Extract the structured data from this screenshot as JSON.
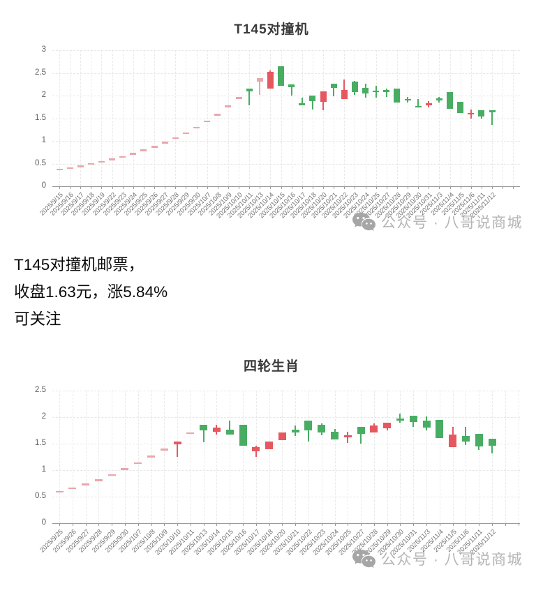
{
  "watermark": {
    "icon": "wechat-icon",
    "text": "公众号 · 八哥说商城"
  },
  "note": {
    "lines": [
      "T145对撞机邮票，",
      "收盘1.63元，涨5.84%",
      "可关注"
    ]
  },
  "colors": {
    "red": "#e65860",
    "green": "#48ad63",
    "pale_red": "#e9a6ab",
    "grid": "#e8e8e8",
    "axis": "#9a9a9a",
    "title": "#3a3a3a",
    "y_label": "#606060",
    "x_label": "#707070",
    "note_text": "#0a0a0a",
    "watermark_text": "#b5b5b5"
  },
  "chart_data": [
    {
      "type": "candlestick",
      "title": "T145对撞机",
      "ylim": [
        0,
        3
      ],
      "ystep": 0.5,
      "yticks": [
        "0",
        "0.5",
        "1",
        "1.5",
        "2",
        "2.5",
        "3"
      ],
      "grid": true,
      "legend_position": "none",
      "candles": [
        {
          "d": "2025/9/15",
          "h": 0.37,
          "l": 0.37,
          "bt": 0.37,
          "bb": 0.37,
          "c": "p"
        },
        {
          "d": "2025/9/16",
          "h": 0.4,
          "l": 0.4,
          "bt": 0.4,
          "bb": 0.4,
          "c": "p"
        },
        {
          "d": "2025/9/17",
          "h": 0.44,
          "l": 0.44,
          "bt": 0.44,
          "bb": 0.44,
          "c": "p"
        },
        {
          "d": "2025/9/18",
          "h": 0.49,
          "l": 0.49,
          "bt": 0.49,
          "bb": 0.49,
          "c": "p"
        },
        {
          "d": "2025/9/19",
          "h": 0.54,
          "l": 0.54,
          "bt": 0.54,
          "bb": 0.54,
          "c": "p"
        },
        {
          "d": "2025/9/22",
          "h": 0.59,
          "l": 0.59,
          "bt": 0.59,
          "bb": 0.59,
          "c": "p"
        },
        {
          "d": "2025/9/23",
          "h": 0.65,
          "l": 0.65,
          "bt": 0.65,
          "bb": 0.65,
          "c": "p"
        },
        {
          "d": "2025/9/24",
          "h": 0.72,
          "l": 0.72,
          "bt": 0.72,
          "bb": 0.72,
          "c": "p"
        },
        {
          "d": "2025/9/25",
          "h": 0.79,
          "l": 0.79,
          "bt": 0.79,
          "bb": 0.79,
          "c": "p"
        },
        {
          "d": "2025/9/26",
          "h": 0.87,
          "l": 0.87,
          "bt": 0.87,
          "bb": 0.87,
          "c": "p"
        },
        {
          "d": "2025/9/27",
          "h": 0.96,
          "l": 0.96,
          "bt": 0.96,
          "bb": 0.96,
          "c": "p"
        },
        {
          "d": "2025/9/28",
          "h": 1.06,
          "l": 1.06,
          "bt": 1.06,
          "bb": 1.06,
          "c": "p"
        },
        {
          "d": "2025/9/29",
          "h": 1.17,
          "l": 1.17,
          "bt": 1.17,
          "bb": 1.17,
          "c": "p"
        },
        {
          "d": "2025/9/30",
          "h": 1.29,
          "l": 1.29,
          "bt": 1.29,
          "bb": 1.29,
          "c": "p"
        },
        {
          "d": "2025/10/7",
          "h": 1.43,
          "l": 1.43,
          "bt": 1.43,
          "bb": 1.43,
          "c": "p"
        },
        {
          "d": "2025/10/8",
          "h": 1.58,
          "l": 1.58,
          "bt": 1.58,
          "bb": 1.58,
          "c": "p"
        },
        {
          "d": "2025/10/9",
          "h": 1.76,
          "l": 1.76,
          "bt": 1.76,
          "bb": 1.76,
          "c": "p"
        },
        {
          "d": "2025/10/10",
          "h": 1.95,
          "l": 1.95,
          "bt": 1.95,
          "bb": 1.95,
          "c": "p"
        },
        {
          "d": "2025/10/11",
          "h": 2.16,
          "l": 1.78,
          "bt": 2.16,
          "bb": 2.09,
          "c": "g"
        },
        {
          "d": "2025/10/13",
          "h": 2.38,
          "l": 2.02,
          "bt": 2.38,
          "bb": 2.31,
          "c": "p"
        },
        {
          "d": "2025/10/14",
          "h": 2.56,
          "l": 2.15,
          "bt": 2.52,
          "bb": 2.15,
          "c": "r"
        },
        {
          "d": "2025/10/15",
          "h": 2.65,
          "l": 2.22,
          "bt": 2.65,
          "bb": 2.22,
          "c": "g"
        },
        {
          "d": "2025/10/16",
          "h": 2.24,
          "l": 2.0,
          "bt": 2.24,
          "bb": 2.19,
          "c": "g"
        },
        {
          "d": "2025/10/17",
          "h": 1.95,
          "l": 1.8,
          "bt": 1.83,
          "bb": 1.8,
          "c": "g"
        },
        {
          "d": "2025/10/18",
          "h": 2.0,
          "l": 1.69,
          "bt": 2.0,
          "bb": 1.88,
          "c": "g"
        },
        {
          "d": "2025/10/20",
          "h": 2.09,
          "l": 1.68,
          "bt": 2.09,
          "bb": 1.86,
          "c": "r"
        },
        {
          "d": "2025/10/21",
          "h": 2.26,
          "l": 1.99,
          "bt": 2.26,
          "bb": 2.17,
          "c": "g"
        },
        {
          "d": "2025/10/22",
          "h": 2.35,
          "l": 1.92,
          "bt": 2.13,
          "bb": 1.92,
          "c": "r"
        },
        {
          "d": "2025/10/23",
          "h": 2.33,
          "l": 2.02,
          "bt": 2.31,
          "bb": 2.07,
          "c": "g"
        },
        {
          "d": "2025/10/24",
          "h": 2.26,
          "l": 1.96,
          "bt": 2.17,
          "bb": 2.04,
          "c": "g"
        },
        {
          "d": "2025/10/25",
          "h": 2.21,
          "l": 1.96,
          "bt": 2.11,
          "bb": 2.07,
          "c": "g"
        },
        {
          "d": "2025/10/27",
          "h": 2.15,
          "l": 1.97,
          "bt": 2.13,
          "bb": 2.08,
          "c": "g"
        },
        {
          "d": "2025/10/28",
          "h": 2.16,
          "l": 1.85,
          "bt": 2.16,
          "bb": 1.85,
          "c": "g"
        },
        {
          "d": "2025/10/29",
          "h": 1.97,
          "l": 1.85,
          "bt": 1.93,
          "bb": 1.89,
          "c": "g"
        },
        {
          "d": "2025/10/30",
          "h": 1.93,
          "l": 1.74,
          "bt": 1.77,
          "bb": 1.74,
          "c": "g"
        },
        {
          "d": "2025/10/31",
          "h": 1.87,
          "l": 1.74,
          "bt": 1.83,
          "bb": 1.79,
          "c": "r"
        },
        {
          "d": "2025/11/3",
          "h": 1.97,
          "l": 1.85,
          "bt": 1.94,
          "bb": 1.89,
          "c": "g"
        },
        {
          "d": "2025/11/4",
          "h": 2.07,
          "l": 1.7,
          "bt": 2.07,
          "bb": 1.7,
          "c": "g"
        },
        {
          "d": "2025/11/5",
          "h": 1.86,
          "l": 1.62,
          "bt": 1.86,
          "bb": 1.62,
          "c": "g"
        },
        {
          "d": "2025/11/6",
          "h": 1.7,
          "l": 1.5,
          "bt": 1.62,
          "bb": 1.58,
          "c": "r"
        },
        {
          "d": "2025/11/11",
          "h": 1.68,
          "l": 1.49,
          "bt": 1.67,
          "bb": 1.54,
          "c": "g"
        },
        {
          "d": "2025/11/12",
          "h": 1.67,
          "l": 1.36,
          "bt": 1.67,
          "bb": 1.63,
          "c": "g"
        }
      ]
    },
    {
      "type": "candlestick",
      "title": "四轮生肖",
      "ylim": [
        0,
        2.5
      ],
      "ystep": 0.5,
      "yticks": [
        "0",
        "0.5",
        "1",
        "1.5",
        "2",
        "2.5"
      ],
      "grid": true,
      "legend_position": "none",
      "candles": [
        {
          "d": "2025/9/25",
          "h": 0.59,
          "l": 0.59,
          "bt": 0.59,
          "bb": 0.59,
          "c": "p"
        },
        {
          "d": "2025/9/26",
          "h": 0.66,
          "l": 0.66,
          "bt": 0.66,
          "bb": 0.66,
          "c": "p"
        },
        {
          "d": "2025/9/27",
          "h": 0.73,
          "l": 0.73,
          "bt": 0.73,
          "bb": 0.73,
          "c": "p"
        },
        {
          "d": "2025/9/28",
          "h": 0.81,
          "l": 0.81,
          "bt": 0.81,
          "bb": 0.81,
          "c": "p"
        },
        {
          "d": "2025/9/29",
          "h": 0.91,
          "l": 0.91,
          "bt": 0.91,
          "bb": 0.91,
          "c": "p"
        },
        {
          "d": "2025/9/30",
          "h": 1.02,
          "l": 1.02,
          "bt": 1.02,
          "bb": 1.02,
          "c": "p"
        },
        {
          "d": "2025/10/7",
          "h": 1.13,
          "l": 1.13,
          "bt": 1.13,
          "bb": 1.13,
          "c": "p"
        },
        {
          "d": "2025/10/8",
          "h": 1.26,
          "l": 1.26,
          "bt": 1.26,
          "bb": 1.26,
          "c": "p"
        },
        {
          "d": "2025/10/9",
          "h": 1.39,
          "l": 1.39,
          "bt": 1.39,
          "bb": 1.39,
          "c": "p"
        },
        {
          "d": "2025/10/10",
          "h": 1.54,
          "l": 1.25,
          "bt": 1.54,
          "bb": 1.49,
          "c": "r"
        },
        {
          "d": "2025/10/11",
          "h": 1.7,
          "l": 1.7,
          "bt": 1.7,
          "bb": 1.7,
          "c": "p"
        },
        {
          "d": "2025/10/13",
          "h": 1.86,
          "l": 1.52,
          "bt": 1.86,
          "bb": 1.75,
          "c": "g"
        },
        {
          "d": "2025/10/14",
          "h": 1.86,
          "l": 1.67,
          "bt": 1.8,
          "bb": 1.73,
          "c": "r"
        },
        {
          "d": "2025/10/15",
          "h": 1.93,
          "l": 1.67,
          "bt": 1.76,
          "bb": 1.67,
          "c": "g"
        },
        {
          "d": "2025/10/16",
          "h": 1.85,
          "l": 1.46,
          "bt": 1.85,
          "bb": 1.46,
          "c": "g"
        },
        {
          "d": "2025/10/17",
          "h": 1.46,
          "l": 1.25,
          "bt": 1.43,
          "bb": 1.35,
          "c": "r"
        },
        {
          "d": "2025/10/18",
          "h": 1.54,
          "l": 1.4,
          "bt": 1.54,
          "bb": 1.4,
          "c": "r"
        },
        {
          "d": "2025/10/20",
          "h": 1.71,
          "l": 1.56,
          "bt": 1.71,
          "bb": 1.56,
          "c": "r"
        },
        {
          "d": "2025/10/21",
          "h": 1.84,
          "l": 1.64,
          "bt": 1.76,
          "bb": 1.71,
          "c": "g"
        },
        {
          "d": "2025/10/22",
          "h": 1.93,
          "l": 1.54,
          "bt": 1.93,
          "bb": 1.75,
          "c": "g"
        },
        {
          "d": "2025/10/23",
          "h": 1.88,
          "l": 1.66,
          "bt": 1.85,
          "bb": 1.71,
          "c": "g"
        },
        {
          "d": "2025/10/24",
          "h": 1.77,
          "l": 1.58,
          "bt": 1.72,
          "bb": 1.58,
          "c": "g"
        },
        {
          "d": "2025/10/25",
          "h": 1.73,
          "l": 1.51,
          "bt": 1.66,
          "bb": 1.62,
          "c": "r"
        },
        {
          "d": "2025/10/27",
          "h": 1.82,
          "l": 1.5,
          "bt": 1.82,
          "bb": 1.69,
          "c": "g"
        },
        {
          "d": "2025/10/28",
          "h": 1.88,
          "l": 1.71,
          "bt": 1.84,
          "bb": 1.71,
          "c": "r"
        },
        {
          "d": "2025/10/29",
          "h": 1.89,
          "l": 1.75,
          "bt": 1.89,
          "bb": 1.79,
          "c": "r"
        },
        {
          "d": "2025/10/30",
          "h": 2.06,
          "l": 1.9,
          "bt": 1.98,
          "bb": 1.93,
          "c": "g"
        },
        {
          "d": "2025/10/31",
          "h": 2.03,
          "l": 1.81,
          "bt": 2.03,
          "bb": 1.91,
          "c": "g"
        },
        {
          "d": "2025/11/3",
          "h": 2.01,
          "l": 1.75,
          "bt": 1.93,
          "bb": 1.8,
          "c": "g"
        },
        {
          "d": "2025/11/4",
          "h": 1.95,
          "l": 1.6,
          "bt": 1.95,
          "bb": 1.6,
          "c": "g"
        },
        {
          "d": "2025/11/5",
          "h": 1.81,
          "l": 1.43,
          "bt": 1.67,
          "bb": 1.43,
          "c": "r"
        },
        {
          "d": "2025/11/6",
          "h": 1.81,
          "l": 1.48,
          "bt": 1.64,
          "bb": 1.54,
          "c": "g"
        },
        {
          "d": "2025/11/11",
          "h": 1.69,
          "l": 1.38,
          "bt": 1.69,
          "bb": 1.45,
          "c": "g"
        },
        {
          "d": "2025/11/12",
          "h": 1.59,
          "l": 1.31,
          "bt": 1.59,
          "bb": 1.46,
          "c": "g"
        }
      ]
    }
  ]
}
